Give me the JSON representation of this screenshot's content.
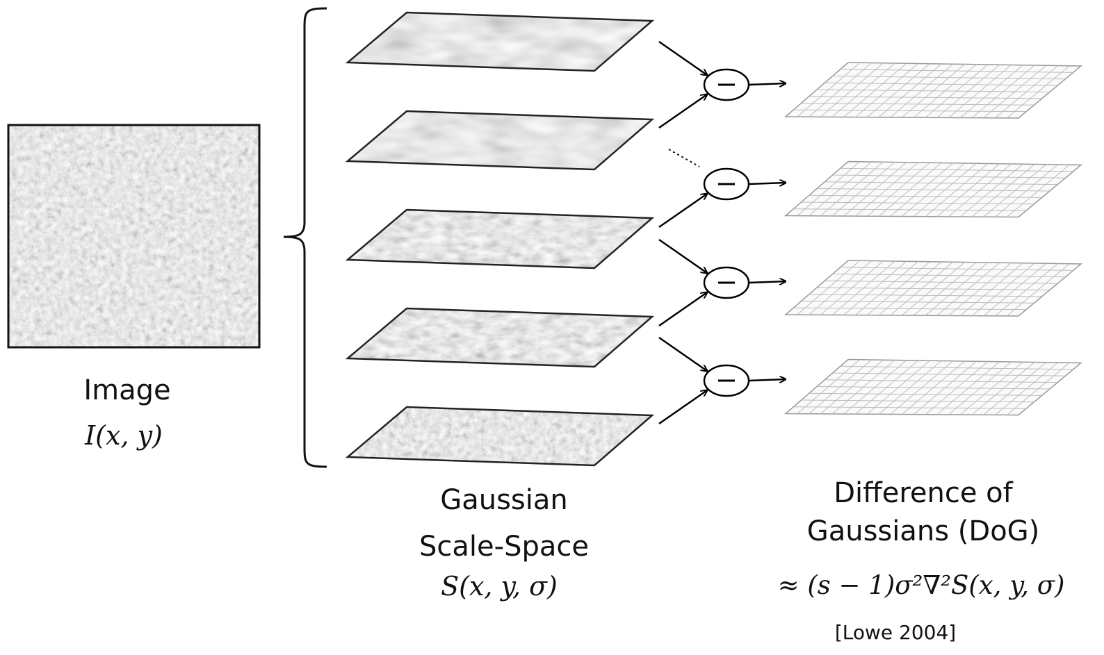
{
  "image": {
    "label": "Image",
    "formula": "I(x, y)"
  },
  "scale_space": {
    "label": [
      "Gaussian",
      "Scale-Space"
    ],
    "formula": "S(x, y, σ)"
  },
  "dog": {
    "label": [
      "Difference of",
      "Gaussians (DoG)"
    ],
    "formula": "≈ (s − 1)σ²∇²S(x, y, σ)"
  },
  "citation": "[Lowe 2004]"
}
